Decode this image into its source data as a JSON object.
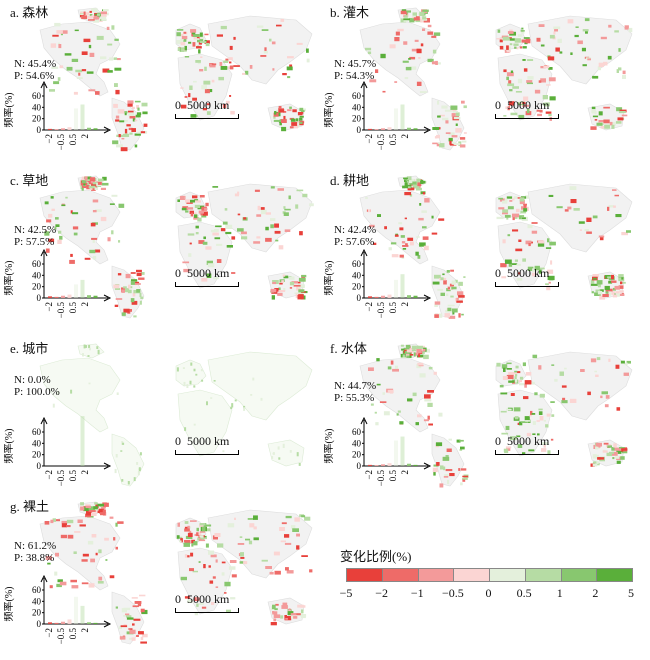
{
  "panels": [
    {
      "id": "a",
      "title": "a. 森林",
      "n": "N: 45.4%",
      "p": "P: 54.6%",
      "hist": [
        2,
        1,
        3,
        5,
        38,
        45,
        4,
        3
      ]
    },
    {
      "id": "b",
      "title": "b. 灌木",
      "n": "N: 45.7%",
      "p": "P: 54.3%",
      "hist": [
        2,
        1,
        3,
        5,
        38,
        45,
        4,
        3
      ]
    },
    {
      "id": "c",
      "title": "c. 草地",
      "n": "N: 42.5%",
      "p": "P: 57.5%",
      "hist": [
        3,
        2,
        4,
        6,
        24,
        32,
        5,
        4
      ]
    },
    {
      "id": "d",
      "title": "d. 耕地",
      "n": "N: 42.4%",
      "p": "P: 57.6%",
      "hist": [
        3,
        2,
        4,
        6,
        32,
        42,
        5,
        4
      ]
    },
    {
      "id": "e",
      "title": "e. 城市",
      "n": "N: 0.0%",
      "p": "P: 100.0%",
      "hist": [
        0,
        0,
        0,
        0,
        0,
        88,
        0,
        0
      ]
    },
    {
      "id": "f",
      "title": "f. 水体",
      "n": "N: 44.7%",
      "p": "P: 55.3%",
      "hist": [
        2,
        1,
        3,
        5,
        45,
        52,
        4,
        2
      ]
    },
    {
      "id": "g",
      "title": "g. 裸土",
      "n": "N: 61.2%",
      "p": "P: 38.8%",
      "hist": [
        3,
        2,
        4,
        8,
        48,
        32,
        3,
        2
      ]
    }
  ],
  "hist_axis": {
    "ylabel": "频率(%)",
    "yticks": [
      "0",
      "20",
      "40",
      "60"
    ],
    "xticks": [
      "−2",
      "−0.5",
      "0.5",
      "2"
    ]
  },
  "scalebar": {
    "label": "0  5000 km"
  },
  "legend": {
    "title": "变化比例(%)",
    "colors": [
      "#e8403a",
      "#ee6b68",
      "#f39a9a",
      "#fbd5d3",
      "#e4f0dc",
      "#b6dca4",
      "#88c76f",
      "#5aaf3a"
    ],
    "ticks": [
      "−5",
      "−2",
      "−1",
      "−0.5",
      "0",
      "0.5",
      "1",
      "2",
      "5"
    ]
  }
}
